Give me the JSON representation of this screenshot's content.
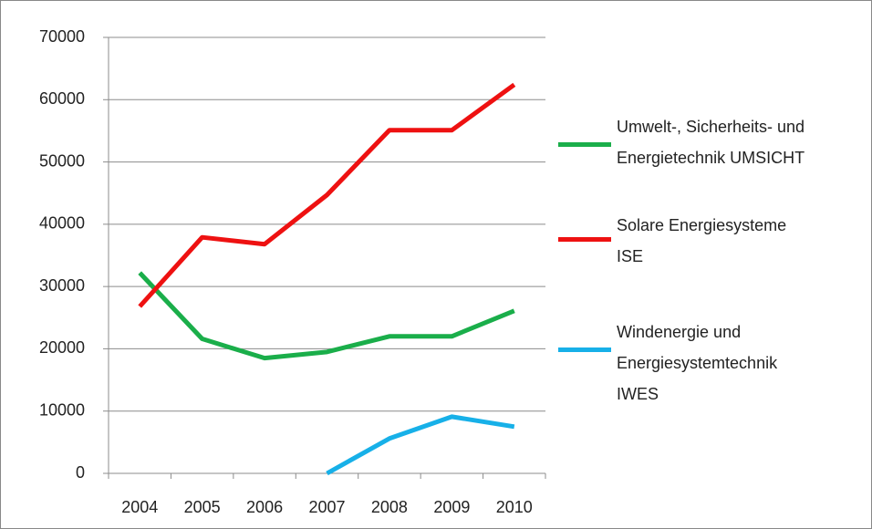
{
  "chart_data": {
    "type": "line",
    "categories": [
      "2004",
      "2005",
      "2006",
      "2007",
      "2008",
      "2009",
      "2010"
    ],
    "series": [
      {
        "name": "Umwelt-, Sicherheits- und Energietechnik UMSICHT",
        "color": "#1aae4a",
        "values": [
          32200,
          21600,
          18500,
          19500,
          22000,
          22000,
          26100
        ]
      },
      {
        "name": "Solare Energiesysteme ISE",
        "color": "#ee1111",
        "values": [
          26800,
          37900,
          36800,
          44700,
          55100,
          55100,
          62400
        ]
      },
      {
        "name": "Windenergie und Energiesystemtechnik IWES",
        "color": "#17b0e8",
        "values": [
          null,
          null,
          null,
          0,
          5600,
          9100,
          7500
        ]
      }
    ],
    "ylim": [
      0,
      70000
    ],
    "yticks": [
      0,
      10000,
      20000,
      30000,
      40000,
      50000,
      60000,
      70000
    ],
    "grid": true,
    "legend": "right"
  }
}
